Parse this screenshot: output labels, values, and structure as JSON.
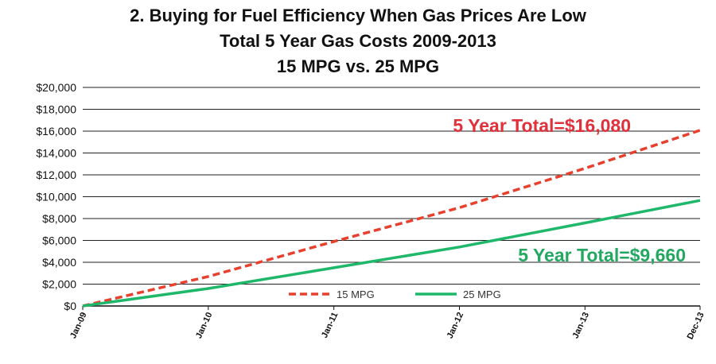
{
  "chart_data": {
    "type": "line",
    "title_lines": [
      "2. Buying for Fuel Efficiency When Gas Prices Are Low",
      "Total 5 Year Gas Costs 2009-2013",
      "15 MPG vs. 25 MPG"
    ],
    "xlabel": "",
    "ylabel": "",
    "ylim": [
      0,
      20000
    ],
    "y_ticks": [
      0,
      2000,
      4000,
      6000,
      8000,
      10000,
      12000,
      14000,
      16000,
      18000,
      20000
    ],
    "y_tick_labels": [
      "$0",
      "$2,000",
      "$4,000",
      "$6,000",
      "$8,000",
      "$10,000",
      "$12,000",
      "$14,000",
      "$16,000",
      "$18,000",
      "$20,000"
    ],
    "x_range": [
      0,
      59
    ],
    "x_ticks": [
      0,
      12,
      24,
      36,
      48,
      59
    ],
    "x_tick_labels": [
      "Jan-09",
      "Jan-10",
      "Jan-11",
      "Jan-12",
      "Jan-13",
      "Dec-13"
    ],
    "grid": true,
    "legend_position": "bottom-center",
    "series": [
      {
        "name": "15 MPG",
        "color": "#e8402e",
        "style": "dashed",
        "x": [
          0,
          12,
          24,
          36,
          48,
          59
        ],
        "values": [
          0,
          2700,
          5900,
          9000,
          12600,
          16080
        ]
      },
      {
        "name": "25 MPG",
        "color": "#1fb86a",
        "style": "solid",
        "x": [
          0,
          12,
          24,
          36,
          48,
          59
        ],
        "values": [
          0,
          1600,
          3500,
          5400,
          7600,
          9660
        ]
      }
    ],
    "annotations": [
      {
        "text": "5 Year Total=$16,080",
        "color": "#e0303c"
      },
      {
        "text": "5 Year Total=$9,660",
        "color": "#22a860"
      }
    ]
  }
}
